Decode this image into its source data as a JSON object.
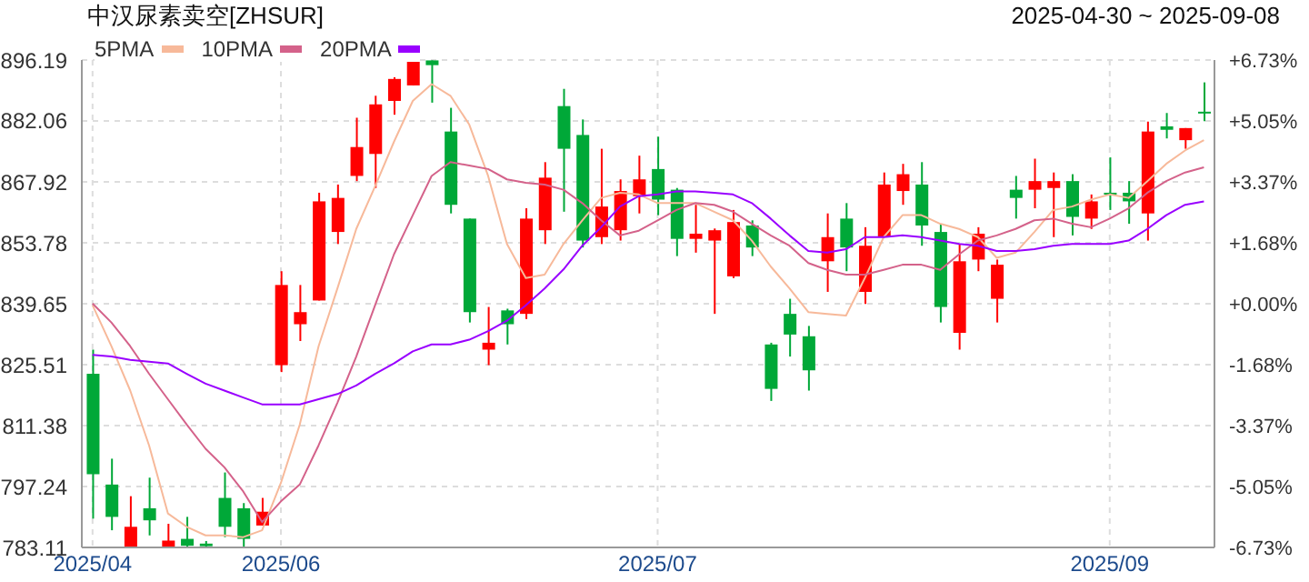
{
  "chart_data": {
    "type": "candlestick",
    "title": "中汉尿素卖空[ZHSUR]",
    "subtitle": "2025-04-30 ~ 2025-09-08",
    "categories": [
      "2025/04",
      null,
      null,
      null,
      null,
      null,
      null,
      null,
      null,
      null,
      "2025/06",
      null,
      null,
      null,
      null,
      null,
      null,
      null,
      null,
      null,
      null,
      null,
      null,
      null,
      null,
      null,
      null,
      null,
      null,
      null,
      "2025/07",
      null,
      null,
      null,
      null,
      null,
      null,
      null,
      null,
      null,
      null,
      null,
      null,
      null,
      null,
      null,
      null,
      null,
      null,
      null,
      null,
      null,
      null,
      null,
      "2025/09",
      null,
      null,
      null,
      null,
      null
    ],
    "ohlc": [
      [
        823.4,
        829.0,
        789.8,
        800.1
      ],
      [
        797.7,
        803.7,
        787.1,
        790.2
      ],
      [
        783.2,
        795.0,
        783.2,
        787.9
      ],
      [
        792.2,
        799.3,
        785.9,
        789.4
      ],
      [
        783.2,
        788.6,
        783.2,
        784.7
      ],
      [
        785.1,
        790.2,
        783.2,
        783.5
      ],
      [
        784.0,
        784.6,
        783.2,
        783.4
      ],
      [
        794.6,
        800.5,
        785.5,
        787.9
      ],
      [
        792.2,
        793.4,
        783.2,
        785.1
      ],
      [
        788.2,
        794.6,
        788.2,
        791.4
      ],
      [
        825.4,
        847.2,
        823.8,
        844.0
      ],
      [
        834.9,
        844.0,
        831.0,
        837.7
      ],
      [
        840.4,
        865.4,
        840.4,
        863.4
      ],
      [
        856.3,
        867.3,
        853.5,
        864.2
      ],
      [
        869.3,
        882.8,
        868.1,
        876.0
      ],
      [
        874.4,
        887.9,
        866.5,
        885.9
      ],
      [
        886.7,
        892.2,
        883.5,
        891.8
      ],
      [
        890.3,
        896.1,
        890.3,
        896.1
      ],
      [
        896.1,
        896.1,
        886.3,
        895.0
      ],
      [
        879.6,
        885.1,
        860.6,
        862.6
      ],
      [
        859.4,
        859.4,
        835.3,
        837.7
      ],
      [
        829.0,
        838.9,
        825.4,
        830.6
      ],
      [
        838.1,
        838.5,
        830.2,
        834.9
      ],
      [
        837.3,
        861.8,
        836.1,
        859.4
      ],
      [
        856.7,
        872.5,
        853.5,
        868.9
      ],
      [
        885.5,
        889.5,
        861.0,
        875.6
      ],
      [
        878.8,
        882.4,
        852.7,
        854.3
      ],
      [
        855.1,
        875.6,
        853.5,
        862.2
      ],
      [
        856.7,
        868.5,
        854.3,
        865.8
      ],
      [
        864.6,
        874.0,
        860.6,
        868.5
      ],
      [
        870.9,
        878.4,
        860.2,
        863.8
      ],
      [
        866.1,
        866.5,
        850.7,
        854.7
      ],
      [
        854.7,
        862.6,
        851.5,
        855.9
      ],
      [
        854.3,
        857.1,
        837.3,
        856.7
      ],
      [
        846.0,
        861.4,
        845.6,
        858.6
      ],
      [
        857.8,
        859.0,
        850.7,
        852.7
      ],
      [
        830.2,
        830.6,
        817.1,
        819.9
      ],
      [
        837.3,
        840.8,
        827.4,
        832.5
      ],
      [
        832.1,
        834.5,
        819.5,
        824.2
      ],
      [
        849.5,
        860.6,
        842.4,
        855.1
      ],
      [
        859.4,
        863.0,
        847.2,
        852.7
      ],
      [
        842.4,
        857.4,
        839.6,
        853.1
      ],
      [
        855.1,
        870.1,
        855.1,
        867.3
      ],
      [
        865.8,
        872.1,
        862.6,
        869.7
      ],
      [
        867.3,
        872.5,
        853.1,
        857.8
      ],
      [
        856.3,
        858.2,
        835.3,
        838.9
      ],
      [
        832.9,
        853.5,
        829.0,
        849.5
      ],
      [
        849.9,
        857.4,
        847.2,
        855.9
      ],
      [
        840.8,
        849.9,
        835.3,
        848.7
      ],
      [
        866.1,
        869.3,
        859.4,
        864.2
      ],
      [
        866.1,
        873.3,
        861.8,
        868.1
      ],
      [
        866.5,
        870.1,
        855.1,
        868.1
      ],
      [
        868.1,
        869.7,
        855.5,
        859.8
      ],
      [
        859.4,
        865.0,
        857.0,
        863.4
      ],
      [
        865.4,
        873.6,
        861.4,
        865.0
      ],
      [
        865.4,
        868.1,
        858.2,
        863.4
      ],
      [
        860.6,
        881.9,
        854.3,
        879.6
      ],
      [
        880.8,
        883.9,
        878.0,
        880.0
      ],
      [
        877.6,
        880.4,
        875.6,
        880.4
      ],
      [
        884.2,
        891.0,
        882.0,
        884.0
      ]
    ],
    "colors": [
      "#00a838",
      "#00a838",
      "#ff0000",
      "#00a838",
      "#ff0000",
      "#00a838",
      "#00a838",
      "#00a838",
      "#00a838",
      "#ff0000",
      "#ff0000",
      "#ff0000",
      "#ff0000",
      "#ff0000",
      "#ff0000",
      "#ff0000",
      "#ff0000",
      "#ff0000",
      "#00a838",
      "#00a838",
      "#00a838",
      "#ff0000",
      "#00a838",
      "#ff0000",
      "#ff0000",
      "#00a838",
      "#00a838",
      "#ff0000",
      "#ff0000",
      "#ff0000",
      "#00a838",
      "#00a838",
      "#ff0000",
      "#ff0000",
      "#ff0000",
      "#00a838",
      "#00a838",
      "#00a838",
      "#00a838",
      "#ff0000",
      "#00a838",
      "#ff0000",
      "#ff0000",
      "#ff0000",
      "#00a838",
      "#00a838",
      "#ff0000",
      "#ff0000",
      "#ff0000",
      "#00a838",
      "#ff0000",
      "#ff0000",
      "#00a838",
      "#ff0000",
      "#00a838",
      "#00a838",
      "#ff0000",
      "#00a838",
      "#ff0000",
      "#00a838"
    ],
    "series": [
      {
        "type": "line",
        "name": "5PMA",
        "color": "#f7b99a",
        "values": [
          839.3,
          829.8,
          819.5,
          806.8,
          791.0,
          787.9,
          785.9,
          785.9,
          785.5,
          787.1,
          798.1,
          811.6,
          829.8,
          843.2,
          857.0,
          866.9,
          877.2,
          886.7,
          890.6,
          887.9,
          881.2,
          869.3,
          853.5,
          845.6,
          846.4,
          853.5,
          859.0,
          864.2,
          865.4,
          865.0,
          863.0,
          863.0,
          863.0,
          861.0,
          859.0,
          854.3,
          848.3,
          843.2,
          837.7,
          837.3,
          836.9,
          845.6,
          855.1,
          860.2,
          860.2,
          858.2,
          857.0,
          855.1,
          850.3,
          851.5,
          856.3,
          861.4,
          862.2,
          863.8,
          865.0,
          864.2,
          868.1,
          872.1,
          875.2,
          877.6
        ]
      },
      {
        "type": "line",
        "name": "10PMA",
        "color": "#d4628a",
        "values": [
          839.7,
          835.3,
          829.8,
          823.4,
          817.5,
          811.6,
          806.0,
          801.7,
          796.1,
          789.0,
          793.8,
          797.7,
          806.8,
          816.7,
          827.4,
          839.3,
          851.1,
          860.2,
          869.3,
          872.5,
          871.7,
          870.9,
          868.5,
          867.7,
          867.3,
          866.1,
          863.0,
          859.0,
          855.5,
          856.6,
          859.0,
          861.4,
          863.0,
          862.6,
          861.0,
          858.2,
          855.5,
          853.1,
          849.1,
          847.5,
          846.4,
          846.4,
          847.5,
          848.7,
          848.7,
          847.5,
          851.1,
          854.3,
          855.5,
          857.0,
          859.0,
          859.4,
          858.2,
          857.4,
          859.4,
          861.8,
          865.4,
          868.1,
          870.1,
          871.3
        ]
      },
      {
        "type": "line",
        "name": "20PMA",
        "color": "#9900ff",
        "values": [
          827.8,
          827.4,
          826.6,
          826.2,
          825.8,
          823.4,
          821.1,
          819.5,
          817.9,
          816.3,
          816.3,
          816.3,
          817.5,
          818.7,
          820.7,
          823.4,
          825.8,
          828.6,
          830.2,
          830.2,
          831.3,
          833.3,
          835.7,
          839.3,
          843.2,
          847.6,
          853.1,
          857.4,
          862.2,
          864.6,
          865.0,
          865.7,
          865.7,
          865.4,
          865.0,
          863.0,
          859.4,
          855.5,
          851.9,
          851.5,
          852.3,
          855.1,
          855.1,
          855.5,
          855.1,
          854.3,
          853.5,
          853.1,
          851.9,
          851.9,
          852.3,
          853.1,
          853.5,
          853.5,
          853.5,
          854.3,
          857.0,
          860.2,
          862.6,
          863.4
        ]
      }
    ],
    "ylim": [
      783.11,
      896.19
    ],
    "yticks": [
      783.11,
      797.24,
      811.38,
      825.51,
      839.65,
      853.78,
      867.92,
      882.06,
      896.19
    ],
    "y2lim": [
      -6.73,
      6.73
    ],
    "y2ticks": [
      {
        "value": -6.73,
        "label": "-6.73%"
      },
      {
        "value": -5.05,
        "label": "-5.05%"
      },
      {
        "value": -3.37,
        "label": "-3.37%"
      },
      {
        "value": -1.68,
        "label": "-1.68%"
      },
      {
        "value": 0,
        "label": "+0.00%"
      },
      {
        "value": 1.68,
        "label": "+1.68%"
      },
      {
        "value": 3.37,
        "label": "+3.37%"
      },
      {
        "value": 5.05,
        "label": "+5.05%"
      },
      {
        "value": 6.73,
        "label": "+6.73%"
      }
    ],
    "grid": true,
    "legend": "top left",
    "marker": "none",
    "line_style": "solid"
  }
}
